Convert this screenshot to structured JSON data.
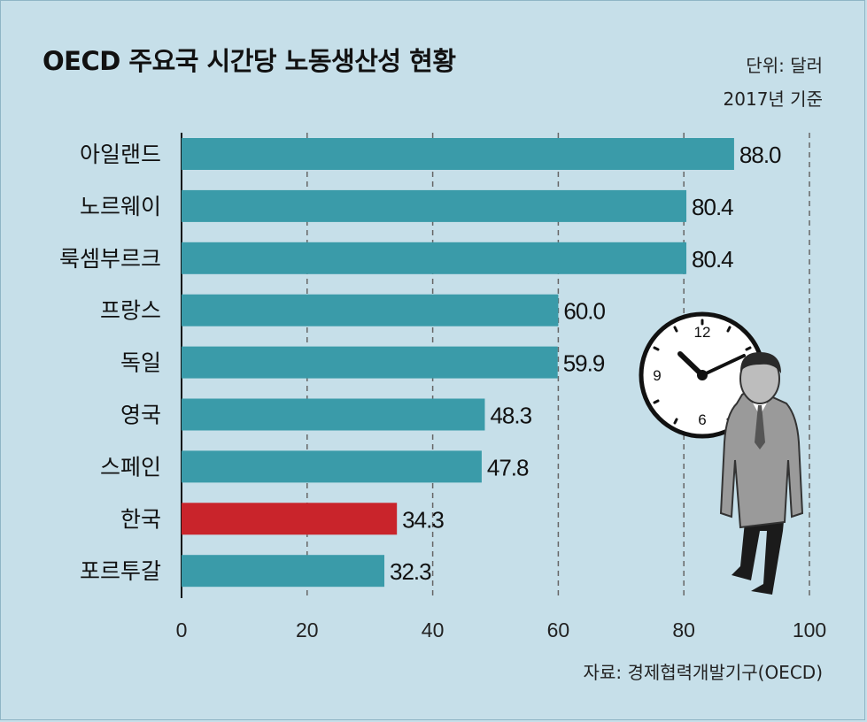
{
  "chart_data": {
    "type": "bar",
    "orientation": "horizontal",
    "title": "OECD 주요국 시간당 노동생산성 현황",
    "unit_note": "단위: 달러",
    "year_note": "2017년 기준",
    "source": "자료: 경제협력개발기구(OECD)",
    "categories": [
      "아일랜드",
      "노르웨이",
      "룩셈부르크",
      "프랑스",
      "독일",
      "영국",
      "스페인",
      "한국",
      "포르투갈"
    ],
    "values": [
      88.0,
      80.4,
      80.4,
      60.0,
      59.9,
      48.3,
      47.8,
      34.3,
      32.3
    ],
    "value_labels": [
      "88.0",
      "80.4",
      "80.4",
      "60.0",
      "59.9",
      "48.3",
      "47.8",
      "34.3",
      "32.3"
    ],
    "highlight_category": "한국",
    "xlim": [
      0,
      100
    ],
    "x_ticks": [
      0,
      20,
      40,
      60,
      80,
      100
    ],
    "grid": true,
    "colors": {
      "bar": "#3a9ba9",
      "highlight": "#c9242b",
      "background": "#c6dfe9"
    }
  }
}
